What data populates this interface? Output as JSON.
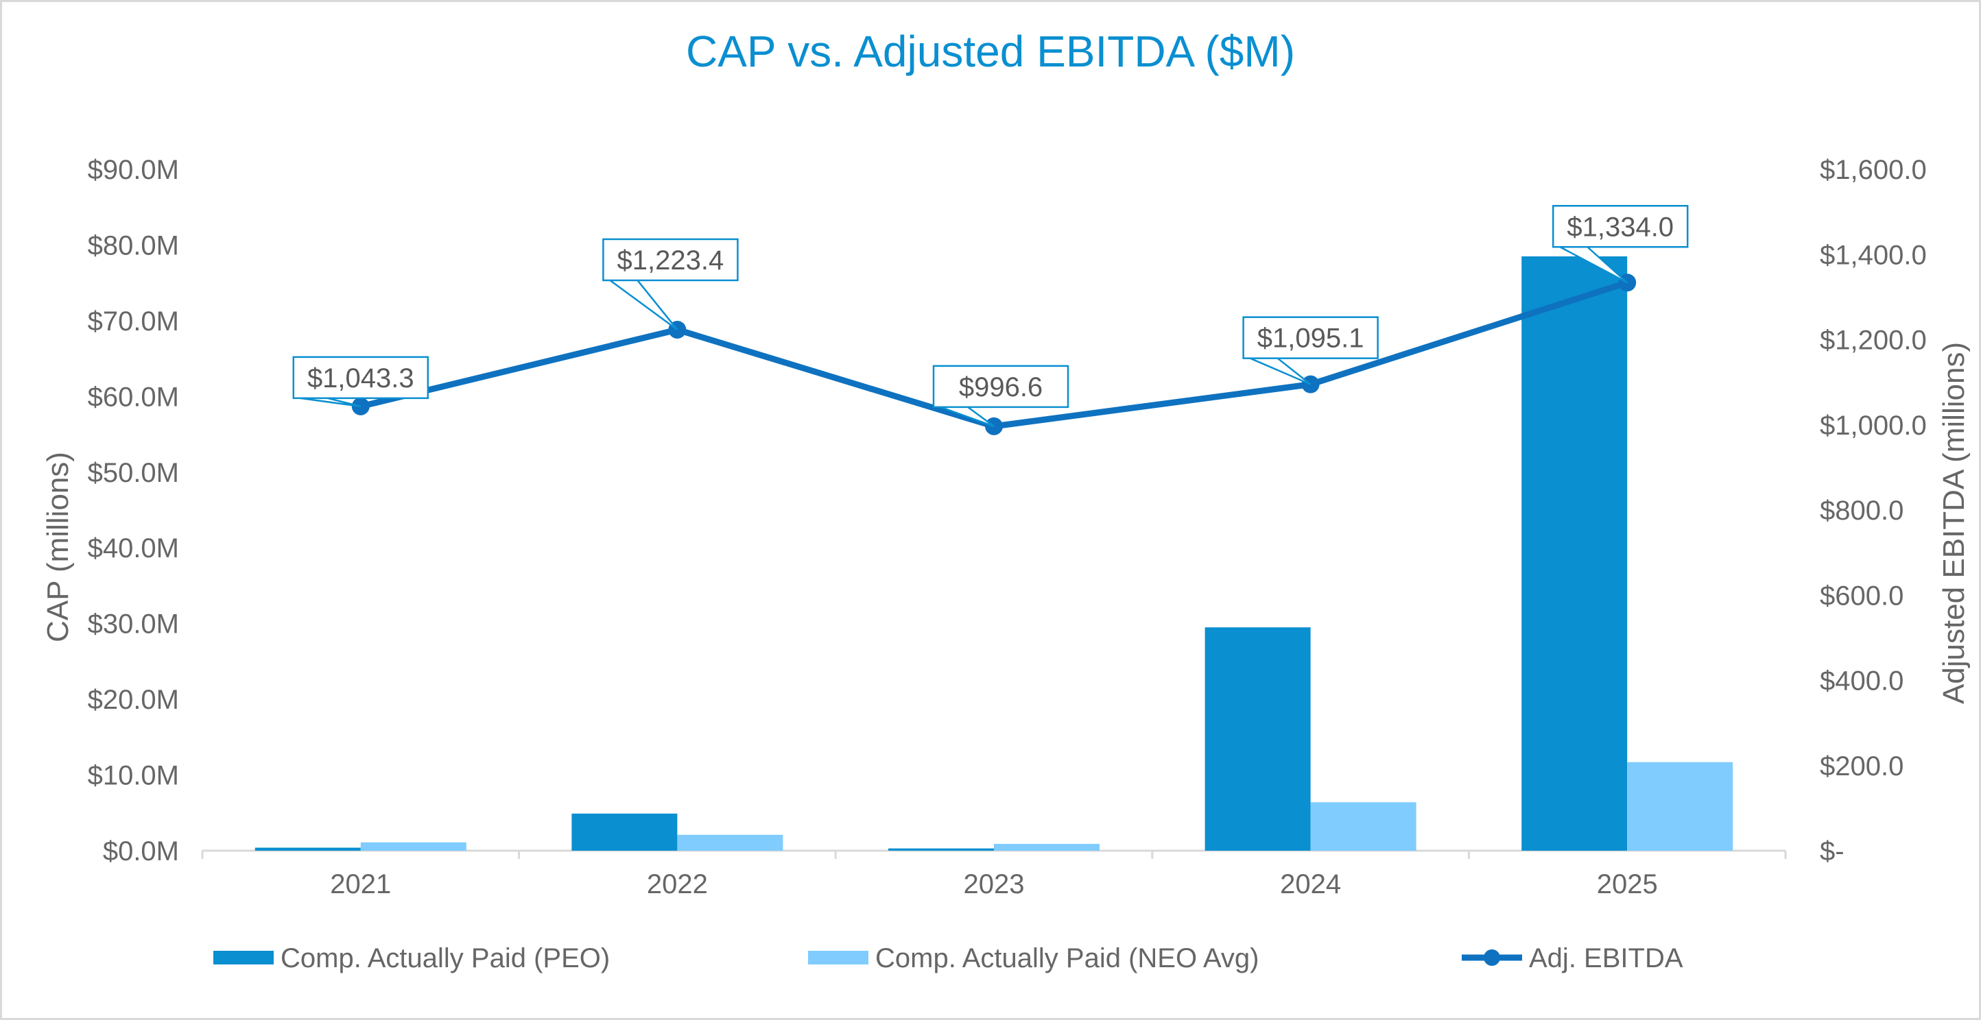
{
  "chart_data": {
    "type": "bar",
    "title": "CAP vs. Adjusted EBITDA ($M)",
    "categories": [
      "2021",
      "2022",
      "2023",
      "2024",
      "2025"
    ],
    "ylabel": "CAP (millions)",
    "ylabel_right": "Adjusted EBITDA (millions)",
    "ylim": [
      0,
      90
    ],
    "ylim_right": [
      0,
      1600
    ],
    "y_ticks": [
      0,
      10,
      20,
      30,
      40,
      50,
      60,
      70,
      80,
      90
    ],
    "y_tick_labels": [
      "$0.0M",
      "$10.0M",
      "$20.0M",
      "$30.0M",
      "$40.0M",
      "$50.0M",
      "$60.0M",
      "$70.0M",
      "$80.0M",
      "$90.0M"
    ],
    "y_right_ticks": [
      0,
      200,
      400,
      600,
      800,
      1000,
      1200,
      1400,
      1600
    ],
    "y_right_tick_labels": [
      "$-",
      "$200.0",
      "$400.0",
      "$600.0",
      "$800.0",
      "$1,000.0",
      "$1,200.0",
      "$1,400.0",
      "$1,600.0"
    ],
    "series": [
      {
        "name": "Comp. Actually Paid (PEO)",
        "type": "bar",
        "axis": "left",
        "color": "#0a8fd0",
        "values": [
          0.4,
          4.9,
          0.3,
          29.5,
          78.5
        ]
      },
      {
        "name": "Comp. Actually Paid (NEO Avg)",
        "type": "bar",
        "axis": "left",
        "color": "#80ccff",
        "values": [
          1.1,
          2.1,
          0.9,
          6.4,
          11.7
        ]
      },
      {
        "name": "Adj. EBITDA",
        "type": "line",
        "axis": "right",
        "color": "#0e72c0",
        "values": [
          1043.3,
          1223.4,
          996.6,
          1095.1,
          1334.0
        ],
        "data_labels": [
          "$1,043.3",
          "$1,223.4",
          "$996.6",
          "$1,095.1",
          "$1,334.0"
        ]
      }
    ],
    "legend_position": "bottom",
    "grid": false
  }
}
